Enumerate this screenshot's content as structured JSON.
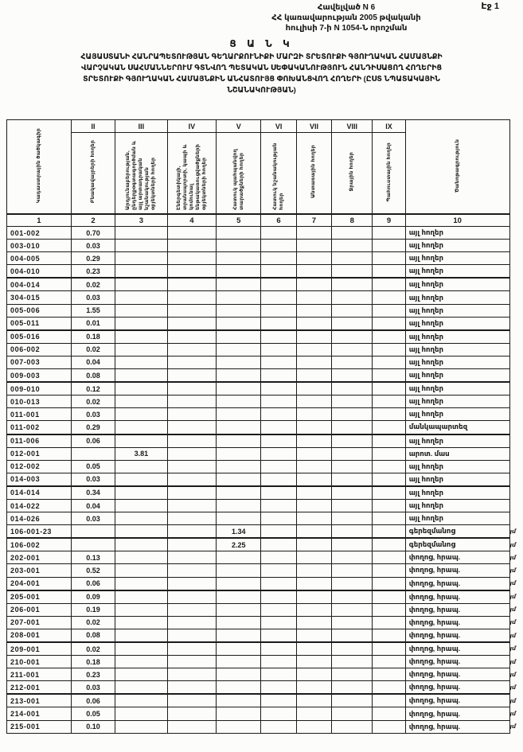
{
  "page_label": "Էջ 1",
  "annex": {
    "line1": "Հավելված N 6",
    "line2": "ՀՀ կառավարության 2005 թվականի",
    "line3": "հուլիսի 7-ի N 1054-Ն որոշման"
  },
  "title": "Ց Ա Ն Կ",
  "subtitle_lines": [
    "ՀԱՅԱՍՏԱՆԻ ՀԱՆՐԱՊԵՏՈՒԹՅԱՆ ԳԵՂԱՐՔՈՒՆԻՔԻ ՄԱՐԶԻ ՏՐԵՏՈՒՔԻ ԳՅՈՒՂԱԿԱՆ ՀԱՄԱՅՆՔԻ",
    "ՎԱՐՉԱԿԱՆ ՍԱՀՄԱՆՆԵՐՈՒՄ ԳՏՆՎՈՂ ՊԵՏԱԿԱՆ ՍԵՓԱԿԱՆՈՒԹՅՈՒՆ ՀԱՆԴԻՍԱՑՈՂ ՀՈՂԵՐԻՑ",
    "ՏՐԵՏՈՒՔԻ ԳՅՈՒՂԱԿԱՆ ՀԱՄԱՅՆՔԻՆ ԱՆՀԱՏՈՒՅՑ ՓՈԽԱՆՑՎՈՂ ՀՈՂԵՐԻ (ԸՍՏ ՆՊԱՏԱԿԱՅԻՆ",
    "ՆՇԱՆԱԿՈՒԹՅԱՆ)"
  ],
  "table": {
    "col1_header": "Կադաստրային ծածկագիր",
    "col10_header": "Ծանոթագրություն",
    "roman_numerals": [
      "II",
      "III",
      "IV",
      "V",
      "VI",
      "VII",
      "VIII",
      "IX"
    ],
    "rotated_headers": [
      "Բնակավայրերի հողեր",
      "Արդյունաբերության, ընդերքօգտագործման և այլ արտադրական նշանակության օբյեկտների հողեր",
      "Էներգետիկայի, տրանսպորտի, կապի և կոմունալ ենթակառուցվածքների օբյեկտների հողեր",
      "Հատուկ պահպանվող տարածքների հողեր",
      "Հատուկ նշանակության հողեր",
      "Անտառային հողեր",
      "Ջրային հողեր",
      "Պահուստային հողեր"
    ],
    "column_numbers": [
      "1",
      "2",
      "3",
      "4",
      "5",
      "6",
      "7",
      "8",
      "9",
      "10"
    ],
    "rows": [
      {
        "code": "001-002",
        "v": [
          "0.70",
          "",
          "",
          "",
          "",
          "",
          "",
          ""
        ],
        "note": "այլ հողեր",
        "mark": ""
      },
      {
        "code": "003-010",
        "v": [
          "0.03",
          "",
          "",
          "",
          "",
          "",
          "",
          ""
        ],
        "note": "այլ հողեր",
        "mark": ""
      },
      {
        "code": "004-005",
        "v": [
          "0.29",
          "",
          "",
          "",
          "",
          "",
          "",
          ""
        ],
        "note": "այլ հողեր",
        "mark": ""
      },
      {
        "code": "004-010",
        "v": [
          "0.23",
          "",
          "",
          "",
          "",
          "",
          "",
          ""
        ],
        "note": "այլ հողեր",
        "mark": ""
      },
      {
        "code": "004-014",
        "v": [
          "0.02",
          "",
          "",
          "",
          "",
          "",
          "",
          ""
        ],
        "note": "այլ հողեր",
        "mark": ""
      },
      {
        "code": "304-015",
        "v": [
          "0.03",
          "",
          "",
          "",
          "",
          "",
          "",
          ""
        ],
        "note": "այլ հողեր",
        "mark": ""
      },
      {
        "code": "005-006",
        "v": [
          "1.55",
          "",
          "",
          "",
          "",
          "",
          "",
          ""
        ],
        "note": "այլ հողեր",
        "mark": ""
      },
      {
        "code": "005-011",
        "v": [
          "0.01",
          "",
          "",
          "",
          "",
          "",
          "",
          ""
        ],
        "note": "այլ հողեր",
        "mark": ""
      },
      {
        "code": "005-016",
        "v": [
          "0.18",
          "",
          "",
          "",
          "",
          "",
          "",
          ""
        ],
        "note": "այլ հողեր",
        "mark": ""
      },
      {
        "code": "006-002",
        "v": [
          "0.02",
          "",
          "",
          "",
          "",
          "",
          "",
          ""
        ],
        "note": "այլ հողեր",
        "mark": ""
      },
      {
        "code": "007-003",
        "v": [
          "0.04",
          "",
          "",
          "",
          "",
          "",
          "",
          ""
        ],
        "note": "այլ հողեր",
        "mark": ""
      },
      {
        "code": "009-003",
        "v": [
          "0.08",
          "",
          "",
          "",
          "",
          "",
          "",
          ""
        ],
        "note": "այլ հողեր",
        "mark": ""
      },
      {
        "code": "009-010",
        "v": [
          "0.12",
          "",
          "",
          "",
          "",
          "",
          "",
          ""
        ],
        "note": "այլ հողեր",
        "mark": ""
      },
      {
        "code": "010-013",
        "v": [
          "0.02",
          "",
          "",
          "",
          "",
          "",
          "",
          ""
        ],
        "note": "այլ հողեր",
        "mark": ""
      },
      {
        "code": "011-001",
        "v": [
          "0.03",
          "",
          "",
          "",
          "",
          "",
          "",
          ""
        ],
        "note": "այլ հողեր",
        "mark": ""
      },
      {
        "code": "011-002",
        "v": [
          "0.29",
          "",
          "",
          "",
          "",
          "",
          "",
          ""
        ],
        "note": "մանկապարտեզ",
        "mark": ""
      },
      {
        "code": "011-006",
        "v": [
          "0.06",
          "",
          "",
          "",
          "",
          "",
          "",
          ""
        ],
        "note": "այլ հողեր",
        "mark": ""
      },
      {
        "code": "012-001",
        "v": [
          "",
          "3.81",
          "",
          "",
          "",
          "",
          "",
          ""
        ],
        "note": "արոտ. մաս",
        "mark": ""
      },
      {
        "code": "012-002",
        "v": [
          "0.05",
          "",
          "",
          "",
          "",
          "",
          "",
          ""
        ],
        "note": "այլ հողեր",
        "mark": ""
      },
      {
        "code": "014-003",
        "v": [
          "0.03",
          "",
          "",
          "",
          "",
          "",
          "",
          ""
        ],
        "note": "այլ հողեր",
        "mark": ""
      },
      {
        "code": "014-014",
        "v": [
          "0.34",
          "",
          "",
          "",
          "",
          "",
          "",
          ""
        ],
        "note": "այլ հողեր",
        "mark": ""
      },
      {
        "code": "014-022",
        "v": [
          "0.04",
          "",
          "",
          "",
          "",
          "",
          "",
          ""
        ],
        "note": "այլ հողեր",
        "mark": ""
      },
      {
        "code": "014-026",
        "v": [
          "0.03",
          "",
          "",
          "",
          "",
          "",
          "",
          ""
        ],
        "note": "այլ հողեր",
        "mark": ""
      },
      {
        "code": "106-001-23",
        "v": [
          "",
          "",
          "",
          "1.34",
          "",
          "",
          "",
          ""
        ],
        "note": "գերեզմանոց",
        "mark": "յմ"
      },
      {
        "code": "106-002",
        "v": [
          "",
          "",
          "",
          "2.25",
          "",
          "",
          "",
          ""
        ],
        "note": "գերեզմանոց",
        "mark": "յմ"
      },
      {
        "code": "202-001",
        "v": [
          "0.13",
          "",
          "",
          "",
          "",
          "",
          "",
          ""
        ],
        "note": "փողոց, հրապ.",
        "mark": "յմ"
      },
      {
        "code": "203-001",
        "v": [
          "0.52",
          "",
          "",
          "",
          "",
          "",
          "",
          ""
        ],
        "note": "փողոց, հրապ.",
        "mark": "յմ"
      },
      {
        "code": "204-001",
        "v": [
          "0.06",
          "",
          "",
          "",
          "",
          "",
          "",
          ""
        ],
        "note": "փողոց, հրապ.",
        "mark": "յմ"
      },
      {
        "code": "205-001",
        "v": [
          "0.09",
          "",
          "",
          "",
          "",
          "",
          "",
          ""
        ],
        "note": "փողոց, հրապ.",
        "mark": "յմ"
      },
      {
        "code": "206-001",
        "v": [
          "0.19",
          "",
          "",
          "",
          "",
          "",
          "",
          ""
        ],
        "note": "փողոց, հրապ.",
        "mark": "յմ"
      },
      {
        "code": "207-001",
        "v": [
          "0.02",
          "",
          "",
          "",
          "",
          "",
          "",
          ""
        ],
        "note": "փողոց, հրապ.",
        "mark": "յմ"
      },
      {
        "code": "208-001",
        "v": [
          "0.08",
          "",
          "",
          "",
          "",
          "",
          "",
          ""
        ],
        "note": "փողոց, հրապ.",
        "mark": "յմ"
      },
      {
        "code": "209-001",
        "v": [
          "0.02",
          "",
          "",
          "",
          "",
          "",
          "",
          ""
        ],
        "note": "փողոց, հրապ.",
        "mark": "յմ"
      },
      {
        "code": "210-001",
        "v": [
          "0.18",
          "",
          "",
          "",
          "",
          "",
          "",
          ""
        ],
        "note": "փողոց, հրապ.",
        "mark": "յմ"
      },
      {
        "code": "211-001",
        "v": [
          "0.23",
          "",
          "",
          "",
          "",
          "",
          "",
          ""
        ],
        "note": "փողոց, հրապ.",
        "mark": "յմ"
      },
      {
        "code": "212-001",
        "v": [
          "0.03",
          "",
          "",
          "",
          "",
          "",
          "",
          ""
        ],
        "note": "փողոց, հրապ.",
        "mark": "յմ"
      },
      {
        "code": "213-001",
        "v": [
          "0.06",
          "",
          "",
          "",
          "",
          "",
          "",
          ""
        ],
        "note": "փողոց, հրապ.",
        "mark": "յմ"
      },
      {
        "code": "214-001",
        "v": [
          "0.05",
          "",
          "",
          "",
          "",
          "",
          "",
          ""
        ],
        "note": "փողոց, հրապ.",
        "mark": "յմ"
      },
      {
        "code": "215-001",
        "v": [
          "0.10",
          "",
          "",
          "",
          "",
          "",
          "",
          ""
        ],
        "note": "փողոց, հրապ.",
        "mark": "յմ"
      }
    ]
  }
}
